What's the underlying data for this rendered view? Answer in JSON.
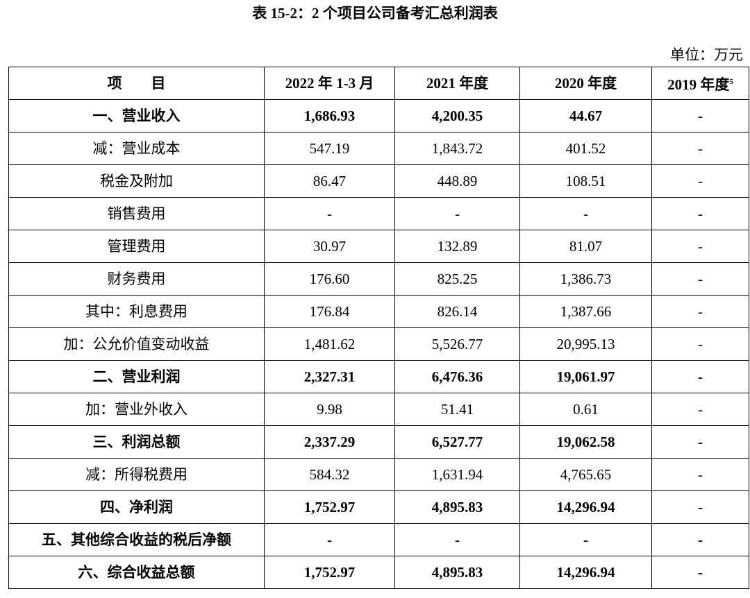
{
  "title": "表 15-2：2 个项目公司备考汇总利润表",
  "unit": "单位：万元",
  "header": {
    "item": "项　　目",
    "c1": "2022 年 1-3 月",
    "c2": "2021 年度",
    "c3": "2020 年度",
    "c4": "2019 年度",
    "c4_note": "5"
  },
  "rows": [
    {
      "label": "一、营业收入",
      "bold": true,
      "v": [
        "1,686.93",
        "4,200.35",
        "44.67",
        "-"
      ]
    },
    {
      "label": "减：营业成本",
      "bold": false,
      "v": [
        "547.19",
        "1,843.72",
        "401.52",
        "-"
      ]
    },
    {
      "label": "税金及附加",
      "bold": false,
      "v": [
        "86.47",
        "448.89",
        "108.51",
        "-"
      ]
    },
    {
      "label": "销售费用",
      "bold": false,
      "v": [
        "-",
        "-",
        "-",
        "-"
      ]
    },
    {
      "label": "管理费用",
      "bold": false,
      "v": [
        "30.97",
        "132.89",
        "81.07",
        "-"
      ]
    },
    {
      "label": "财务费用",
      "bold": false,
      "v": [
        "176.60",
        "825.25",
        "1,386.73",
        "-"
      ]
    },
    {
      "label": "其中：利息费用",
      "bold": false,
      "v": [
        "176.84",
        "826.14",
        "1,387.66",
        "-"
      ]
    },
    {
      "label": "加：公允价值变动收益",
      "bold": false,
      "v": [
        "1,481.62",
        "5,526.77",
        "20,995.13",
        "-"
      ]
    },
    {
      "label": "二、营业利润",
      "bold": true,
      "v": [
        "2,327.31",
        "6,476.36",
        "19,061.97",
        "-"
      ]
    },
    {
      "label": "加：营业外收入",
      "bold": false,
      "v": [
        "9.98",
        "51.41",
        "0.61",
        "-"
      ]
    },
    {
      "label": "三、利润总额",
      "bold": true,
      "v": [
        "2,337.29",
        "6,527.77",
        "19,062.58",
        "-"
      ]
    },
    {
      "label": "减：所得税费用",
      "bold": false,
      "v": [
        "584.32",
        "1,631.94",
        "4,765.65",
        "-"
      ]
    },
    {
      "label": "四、净利润",
      "bold": true,
      "v": [
        "1,752.97",
        "4,895.83",
        "14,296.94",
        "-"
      ]
    },
    {
      "label": "五、其他综合收益的税后净额",
      "bold": true,
      "v": [
        "-",
        "-",
        "-",
        "-"
      ]
    },
    {
      "label": "六、综合收益总额",
      "bold": true,
      "v": [
        "1,752.97",
        "4,895.83",
        "14,296.94",
        "-"
      ]
    }
  ]
}
